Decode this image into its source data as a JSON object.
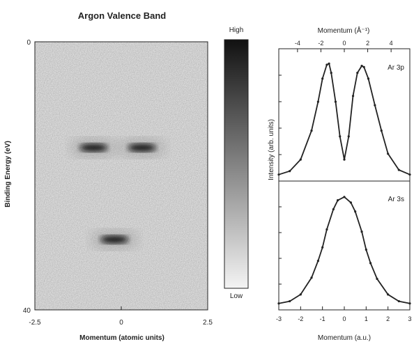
{
  "figure_colors": {
    "ink": "#222222",
    "density_high": "#111111",
    "density_low": "#f4f4f4",
    "fit_line": "#888888"
  },
  "chart_data": [
    {
      "type": "heatmap",
      "title": "Argon Valence Band",
      "xlabel": "Momentum (atomic units)",
      "ylabel": "Binding Energy (eV)",
      "xlim": [
        -2.5,
        2.5
      ],
      "ylim": [
        40,
        0
      ],
      "x_ticks": [
        "-2.5",
        "0",
        "2.5"
      ],
      "y_ticks": [
        "0",
        "40"
      ],
      "features": [
        {
          "name": "Ar 3p",
          "binding_energy_ev": 15.8,
          "momentum_peaks_au": [
            -0.8,
            0.6
          ],
          "intensity": "high"
        },
        {
          "name": "Ar 3s",
          "binding_energy_ev": 29.5,
          "momentum_peaks_au": [
            -0.2
          ],
          "intensity": "high"
        }
      ],
      "colorbar": {
        "max_label": "High",
        "min_label": "Low"
      }
    },
    {
      "type": "line",
      "panel": "Ar 3p",
      "xlabel_top": "Momentum (Å⁻¹)",
      "top_ticks": [
        "-4",
        "-2",
        "0",
        "2",
        "4"
      ],
      "ylabel": "Intensity (arb. units)",
      "xlim": [
        -3,
        3
      ],
      "x": [
        -3,
        -2.5,
        -2,
        -1.5,
        -1.2,
        -1,
        -0.8,
        -0.7,
        -0.6,
        -0.4,
        -0.2,
        0,
        0.2,
        0.4,
        0.6,
        0.8,
        0.9,
        1.1,
        1.4,
        1.7,
        2,
        2.5,
        3
      ],
      "y": [
        0.02,
        0.05,
        0.15,
        0.4,
        0.65,
        0.85,
        0.97,
        0.98,
        0.9,
        0.65,
        0.35,
        0.15,
        0.35,
        0.7,
        0.9,
        0.96,
        0.95,
        0.85,
        0.62,
        0.4,
        0.2,
        0.06,
        0.02
      ]
    },
    {
      "type": "line",
      "panel": "Ar 3s",
      "xlabel": "Momentum (a.u.)",
      "x_ticks": [
        "-3",
        "-2",
        "-1",
        "0",
        "1",
        "2",
        "3"
      ],
      "xlim": [
        -3,
        3
      ],
      "x": [
        -3,
        -2.5,
        -2,
        -1.5,
        -1.2,
        -1,
        -0.8,
        -0.5,
        -0.3,
        0,
        0.3,
        0.5,
        0.8,
        1,
        1.2,
        1.5,
        2,
        2.5,
        3
      ],
      "y": [
        0.02,
        0.04,
        0.1,
        0.25,
        0.4,
        0.52,
        0.68,
        0.86,
        0.94,
        0.97,
        0.92,
        0.84,
        0.66,
        0.5,
        0.38,
        0.24,
        0.1,
        0.04,
        0.02
      ]
    }
  ]
}
